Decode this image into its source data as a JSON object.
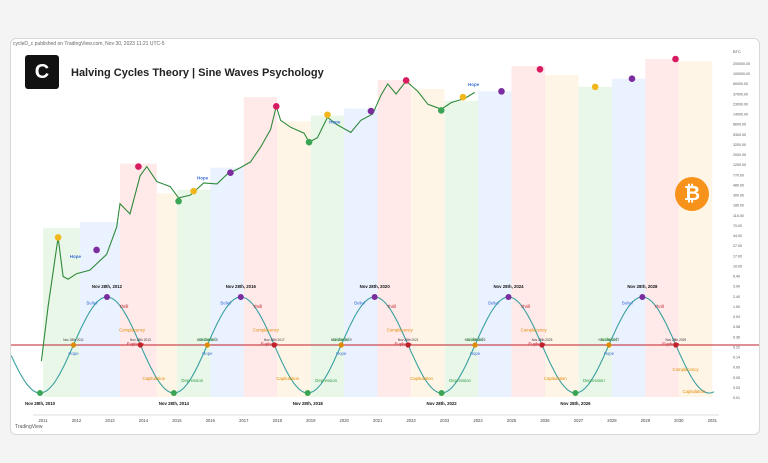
{
  "header": {
    "attribution": "cycleD_c  published on TradingView.com, Nov 30, 2023 11:21 UTC-5",
    "title": "Halving Cycles Theory | Sine Waves Psychology",
    "logo_glyph": "C",
    "btc_symbol": "₿",
    "footer_mark": "TradingView"
  },
  "colors": {
    "hope_blue": "#e3ecff",
    "euphoria_red": "#ffe1e1",
    "capitulation_orange": "#fff1df",
    "disbelief_green": "#e2f4e2",
    "baseline": "#c0202a",
    "wave": "#3aa0a0",
    "price": "#2f8a3a"
  },
  "chart_data": {
    "type": "line",
    "title": "Halving Cycles Theory | Sine Waves Psychology",
    "y_scale": "log",
    "currency_label": "BTC",
    "ylim": [
      0.01,
      200000
    ],
    "y_ticks": [
      "200000.00",
      "100000.00",
      "60000.00",
      "37000.00",
      "23000.00",
      "14000.00",
      "8600.00",
      "5300.00",
      "3200.00",
      "2000.00",
      "1250.00",
      "770.00",
      "480.00",
      "300.00",
      "185.00",
      "115.00",
      "70.00",
      "44.00",
      "27.00",
      "17.00",
      "10.00",
      "6.40",
      "3.90",
      "2.40",
      "1.50",
      "0.94",
      "0.58",
      "0.36",
      "0.22",
      "0.14",
      "0.09",
      "0.05",
      "0.03",
      "0.01"
    ],
    "x_ticks": [
      "2011",
      "2012",
      "2013",
      "2014",
      "2015",
      "2016",
      "2017",
      "2018",
      "2019",
      "2020",
      "2021",
      "2022",
      "2023",
      "2024",
      "2025",
      "2026",
      "2027",
      "2028",
      "2029",
      "2030",
      "2031"
    ],
    "xlim": [
      2010.7,
      2031.2
    ],
    "price_series": {
      "name": "BTC price",
      "x": [
        2010.95,
        2011.15,
        2011.45,
        2011.6,
        2011.75,
        2012.0,
        2012.4,
        2012.9,
        2013.2,
        2013.3,
        2013.6,
        2013.9,
        2014.1,
        2014.4,
        2014.8,
        2015.05,
        2015.4,
        2015.8,
        2016.2,
        2016.5,
        2016.9,
        2017.2,
        2017.5,
        2017.8,
        2017.97,
        2018.1,
        2018.4,
        2018.8,
        2018.95,
        2019.2,
        2019.5,
        2019.8,
        2020.2,
        2020.5,
        2020.85,
        2021.1,
        2021.3,
        2021.55,
        2021.85,
        2022.2,
        2022.5,
        2022.9,
        2023.2,
        2023.6,
        2023.9
      ],
      "y": [
        0.06,
        0.9,
        28,
        4,
        3.5,
        4.6,
        5.5,
        12,
        47,
        150,
        90,
        600,
        950,
        450,
        350,
        200,
        230,
        420,
        400,
        650,
        900,
        1200,
        2500,
        6000,
        19000,
        9500,
        6700,
        5000,
        3200,
        4000,
        11000,
        7500,
        5200,
        9500,
        13000,
        33000,
        58000,
        35000,
        67000,
        40000,
        21000,
        16500,
        23000,
        28000,
        38000
      ]
    },
    "markers": [
      {
        "x": 2011.45,
        "y": 28,
        "color": "#f2b71d"
      },
      {
        "x": 2012.6,
        "y": 15,
        "color": "#7b2c9e"
      },
      {
        "x": 2013.85,
        "y": 950,
        "color": "#d81b60"
      },
      {
        "x": 2015.05,
        "y": 170,
        "color": "#3aa655"
      },
      {
        "x": 2015.5,
        "y": 280,
        "color": "#f2b71d"
      },
      {
        "x": 2016.6,
        "y": 700,
        "color": "#7b2c9e"
      },
      {
        "x": 2017.97,
        "y": 19000,
        "color": "#d81b60"
      },
      {
        "x": 2018.95,
        "y": 3200,
        "color": "#3aa655"
      },
      {
        "x": 2019.5,
        "y": 12500,
        "color": "#f2b71d"
      },
      {
        "x": 2020.8,
        "y": 15000,
        "color": "#7b2c9e"
      },
      {
        "x": 2021.85,
        "y": 69000,
        "color": "#d81b60"
      },
      {
        "x": 2022.9,
        "y": 15500,
        "color": "#3aa655"
      },
      {
        "x": 2023.55,
        "y": 30000,
        "color": "#f2b71d"
      },
      {
        "x": 2024.7,
        "y": 40000,
        "color": "#7b2c9e"
      },
      {
        "x": 2025.85,
        "y": 120000,
        "color": "#d81b60"
      },
      {
        "x": 2027.5,
        "y": 50000,
        "color": "#f2b71d"
      },
      {
        "x": 2028.6,
        "y": 75000,
        "color": "#7b2c9e"
      },
      {
        "x": 2029.9,
        "y": 200000,
        "color": "#d81b60"
      }
    ],
    "price_labels": [
      {
        "text": "Hope",
        "x": 2011.8,
        "y": 10
      },
      {
        "text": "Hope",
        "x": 2015.6,
        "y": 500
      },
      {
        "text": "Hope",
        "x": 2019.55,
        "y": 8000
      },
      {
        "text": "Hope",
        "x": 2023.7,
        "y": 52000
      }
    ],
    "bands": [
      {
        "x0": 2011.0,
        "x1": 2012.1,
        "y_top": 45,
        "color": "#e2f4e2"
      },
      {
        "x0": 2012.1,
        "x1": 2013.3,
        "y_top": 60,
        "color": "#e3ecff"
      },
      {
        "x0": 2013.3,
        "x1": 2014.4,
        "y_top": 1100,
        "color": "#ffe1e1"
      },
      {
        "x0": 2014.4,
        "x1": 2015.0,
        "y_top": 250,
        "color": "#fff1df"
      },
      {
        "x0": 2015.0,
        "x1": 2016.0,
        "y_top": 300,
        "color": "#e2f4e2"
      },
      {
        "x0": 2016.0,
        "x1": 2017.0,
        "y_top": 900,
        "color": "#e3ecff"
      },
      {
        "x0": 2017.0,
        "x1": 2018.0,
        "y_top": 30000,
        "color": "#ffe1e1"
      },
      {
        "x0": 2018.0,
        "x1": 2019.0,
        "y_top": 9000,
        "color": "#fff1df"
      },
      {
        "x0": 2019.0,
        "x1": 2020.0,
        "y_top": 12000,
        "color": "#e2f4e2"
      },
      {
        "x0": 2020.0,
        "x1": 2021.0,
        "y_top": 17000,
        "color": "#e3ecff"
      },
      {
        "x0": 2021.0,
        "x1": 2022.0,
        "y_top": 70000,
        "color": "#ffe1e1"
      },
      {
        "x0": 2022.0,
        "x1": 2023.0,
        "y_top": 45000,
        "color": "#fff1df"
      },
      {
        "x0": 2023.0,
        "x1": 2024.0,
        "y_top": 25000,
        "color": "#e2f4e2"
      },
      {
        "x0": 2024.0,
        "x1": 2025.0,
        "y_top": 40000,
        "color": "#e3ecff"
      },
      {
        "x0": 2025.0,
        "x1": 2026.0,
        "y_top": 140000,
        "color": "#ffe1e1"
      },
      {
        "x0": 2026.0,
        "x1": 2027.0,
        "y_top": 90000,
        "color": "#fff1df"
      },
      {
        "x0": 2027.0,
        "x1": 2028.0,
        "y_top": 50000,
        "color": "#e2f4e2"
      },
      {
        "x0": 2028.0,
        "x1": 2029.0,
        "y_top": 75000,
        "color": "#e3ecff"
      },
      {
        "x0": 2029.0,
        "x1": 2030.0,
        "y_top": 200000,
        "color": "#ffe1e1"
      },
      {
        "x0": 2030.0,
        "x1": 2031.0,
        "y_top": 180000,
        "color": "#fff1df"
      }
    ],
    "sine": {
      "cycles": [
        {
          "peak_label": "Nov 28th, 2012",
          "peak_x": 2012.91,
          "trough_label": "Nov 28th, 2010",
          "trough_x": 2010.91
        },
        {
          "peak_label": "Nov 28th, 2016",
          "peak_x": 2016.91,
          "trough_label": "Nov 28th, 2014",
          "trough_x": 2014.91
        },
        {
          "peak_label": "Nov 28th, 2020",
          "peak_x": 2020.91,
          "trough_label": "Nov 28th, 2018",
          "trough_x": 2018.91
        },
        {
          "peak_label": "Nov 28th, 2024",
          "peak_x": 2024.91,
          "trough_label": "Nov 28th, 2022",
          "trough_x": 2022.91
        },
        {
          "peak_label": "Nov 28th, 2028",
          "peak_x": 2028.91,
          "trough_label": "Nov 28th, 2026",
          "trough_x": 2026.91
        }
      ],
      "phase_labels": [
        "Hope",
        "Belief",
        "Thrill",
        "Euphoria",
        "Complacency",
        "Capitulation",
        "Depression",
        "Disbelief"
      ],
      "crossing_labels": [
        "Nov 28th 2011",
        "Nov 28th 2013",
        "Nov 28th 2015",
        "Nov 28th 2017",
        "Nov 28th 2019",
        "Nov 28th 2021",
        "Nov 28th 2023",
        "Nov 28th 2025",
        "Nov 28th 2027",
        "Nov 28th 2029"
      ],
      "phase_colors": {
        "Hope": "#3b6fd6",
        "Belief": "#3b6fd6",
        "Thrill": "#c0202a",
        "Euphoria": "#c0202a",
        "Complacency": "#e08a00",
        "Capitulation": "#e08a00",
        "Depression": "#2e9a45",
        "Disbelief": "#2e9a45"
      }
    }
  }
}
